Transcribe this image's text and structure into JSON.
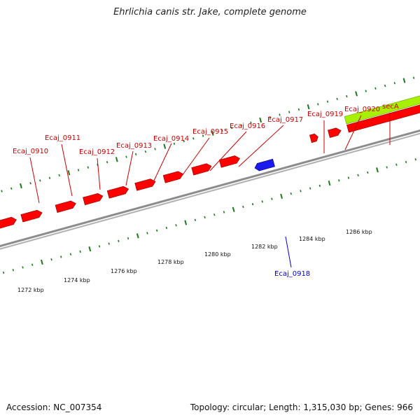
{
  "title": "Ehrlichia canis str. Jake, complete genome",
  "footer": {
    "accession": "Accession: NC_007354",
    "summary": "Topology: circular; Length: 1,315,030 bp; Genes: 966"
  },
  "colors": {
    "forward_gene": "#ff0000",
    "reverse_gene": "#1a1aee",
    "feature_lime": "#a6f000",
    "tick_green": "#1a7a1a",
    "backbone": "#8c8c8c",
    "label_forward": "#cc0000",
    "label_reverse": "#0000cc"
  },
  "axis": {
    "unit": "kbp",
    "tick_labels": [
      "1272 kbp",
      "1274 kbp",
      "1276 kbp",
      "1278 kbp",
      "1280 kbp",
      "1282 kbp",
      "1284 kbp",
      "1286 kbp"
    ]
  },
  "genes": [
    {
      "id": "Ecaj_0910",
      "strand": "forward"
    },
    {
      "id": "Ecaj_0911",
      "strand": "forward"
    },
    {
      "id": "Ecaj_0912",
      "strand": "forward"
    },
    {
      "id": "Ecaj_0913",
      "strand": "forward"
    },
    {
      "id": "Ecaj_0914",
      "strand": "forward"
    },
    {
      "id": "Ecaj_0915",
      "strand": "forward"
    },
    {
      "id": "Ecaj_0916",
      "strand": "forward"
    },
    {
      "id": "Ecaj_0917",
      "strand": "forward"
    },
    {
      "id": "Ecaj_0918",
      "strand": "reverse"
    },
    {
      "id": "Ecaj_0919",
      "strand": "forward"
    },
    {
      "id": "Ecaj_0920",
      "strand": "forward"
    },
    {
      "id": "secA",
      "strand": "forward"
    }
  ]
}
